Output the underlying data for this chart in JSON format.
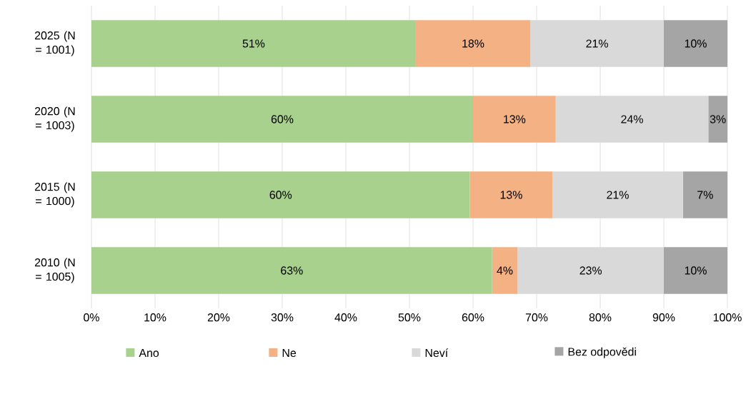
{
  "chart_data": {
    "type": "bar",
    "orientation": "horizontal",
    "stacked": true,
    "categories": [
      "2025 (N = 1001)",
      "2020 (N = 1003)",
      "2015 (N = 1000)",
      "2010 (N = 1005)"
    ],
    "series": [
      {
        "name": "Ano",
        "color": "#a9d18e",
        "values": [
          51,
          60,
          59.5,
          63
        ],
        "value_labels": [
          "51%",
          "60%",
          "60%",
          "63%"
        ]
      },
      {
        "name": "Ne",
        "color": "#f4b183",
        "values": [
          18,
          13,
          13,
          4
        ],
        "value_labels": [
          "18%",
          "13%",
          "13%",
          "4%"
        ]
      },
      {
        "name": "Neví",
        "color": "#d9d9d9",
        "values": [
          21,
          24,
          20.5,
          23
        ],
        "value_labels": [
          "21%",
          "24%",
          "21%",
          "23%"
        ]
      },
      {
        "name": "Bez odpovědi",
        "color": "#a5a5a5",
        "values": [
          10,
          3,
          7,
          10
        ],
        "value_labels": [
          "10%",
          "3%",
          "7%",
          "10%"
        ]
      }
    ],
    "xlim": [
      0,
      100
    ],
    "xticks": [
      {
        "value": 0,
        "label": "0%"
      },
      {
        "value": 10,
        "label": "10%"
      },
      {
        "value": 20,
        "label": "20%"
      },
      {
        "value": 30,
        "label": "30%"
      },
      {
        "value": 40,
        "label": "40%"
      },
      {
        "value": 50,
        "label": "50%"
      },
      {
        "value": 60,
        "label": "60%"
      },
      {
        "value": 70,
        "label": "70%"
      },
      {
        "value": 80,
        "label": "80%"
      },
      {
        "value": 90,
        "label": "90%"
      },
      {
        "value": 100,
        "label": "100%"
      }
    ],
    "grid": "x",
    "legend": "bottom"
  }
}
